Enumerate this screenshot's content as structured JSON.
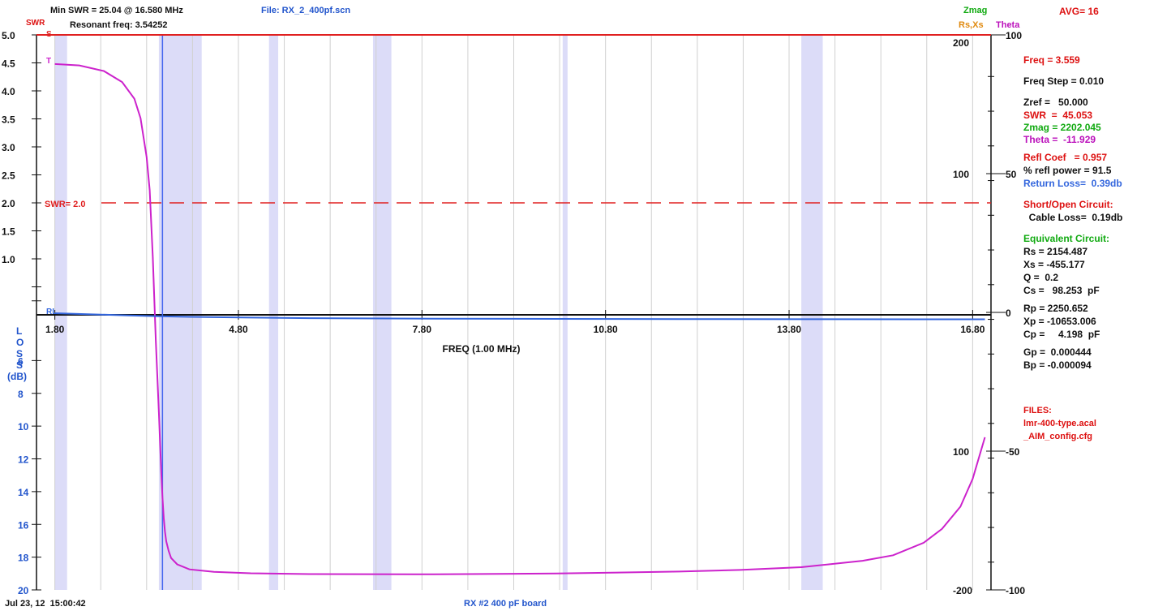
{
  "header": {
    "min_swr_text": "Min SWR = 25.04 @ 16.580 MHz",
    "resonant_text": "Resonant freq: 3.54252",
    "file_text": "File: RX_2_400pf.scn",
    "zmag_label": "Zmag",
    "rsxs_label": "Rs,Xs",
    "theta_label": "Theta",
    "avg_text": "AVG= 16",
    "swr_axis_label": "SWR"
  },
  "footer": {
    "timestamp": "Jul 23, 12  15:00:42",
    "caption": "RX #2 400 pF board"
  },
  "panel": {
    "freq": "Freq = 3.559",
    "freq_step": "Freq Step = 0.010",
    "zref": "Zref =   50.000",
    "swr": "SWR  =  45.053",
    "zmag": "Zmag = 2202.045",
    "theta": "Theta =  -11.929",
    "refl_coef": "Refl Coef   = 0.957",
    "refl_power": "% refl power = 91.5",
    "return_loss": "Return Loss=  0.39db",
    "short_open": "Short/Open Circuit:",
    "cable_loss": "  Cable Loss=  0.19db",
    "equiv_circuit": "Equivalent Circuit:",
    "rs": "Rs = 2154.487",
    "xs": "Xs = -455.177",
    "q": "Q =  0.2",
    "cs": "Cs =   98.253  pF",
    "rp": "Rp = 2250.652",
    "xp": "Xp = -10653.006",
    "cp": "Cp =     4.198  pF",
    "gp": "Gp =  0.000444",
    "bp": "Bp = -0.000094",
    "files_label": "FILES:",
    "file1": "lmr-400-type.acal",
    "file2": "_AIM_config.cfg"
  },
  "colors": {
    "swr": "#e02020",
    "zmag": "#22aa22",
    "rsxs": "#e08a10",
    "theta": "#cc22cc",
    "return_loss": "#3366dd",
    "band": "#dcdcf8",
    "cursor": "#4466ee",
    "grid": "#d0d0d0",
    "text_blue": "#2255cc",
    "text_red": "#dd1111",
    "text_green": "#11aa11",
    "text_magenta": "#bb11bb"
  },
  "chart_data": {
    "type": "line",
    "xlabel": "FREQ (1.00 MHz)",
    "xlim": [
      1.5,
      17.1
    ],
    "x_ticks": [
      "1.80",
      "4.80",
      "7.80",
      "10.80",
      "13.80",
      "16.80"
    ],
    "swr_axis": {
      "ylim": [
        0,
        5.0
      ],
      "ticks": [
        "5.0",
        "4.5",
        "4.0",
        "3.5",
        "3.0",
        "2.5",
        "2.0",
        "1.5",
        "1.0"
      ]
    },
    "loss_axis": {
      "label_letters": [
        "L",
        "O",
        "S",
        "S",
        "(dB)"
      ],
      "ylim": [
        4,
        20
      ],
      "ticks": [
        "6",
        "8",
        "10",
        "12",
        "14",
        "16",
        "18",
        "20"
      ]
    },
    "zmag_axis": {
      "ticks": [
        "200",
        "100",
        "100",
        "-200"
      ]
    },
    "theta_axis": {
      "ylim": [
        -100,
        100
      ],
      "ticks": [
        "100",
        "50",
        "0",
        "-50",
        "-100"
      ]
    },
    "swr_threshold": {
      "value": 2.0,
      "label": "SWR= 2.0"
    },
    "cursor_freq": 3.559,
    "series_markers": {
      "swr": "S",
      "theta": "T",
      "rl": "RL"
    },
    "ham_bands": [
      [
        1.8,
        2.0
      ],
      [
        3.5,
        4.2
      ],
      [
        5.3,
        5.45
      ],
      [
        7.0,
        7.3
      ],
      [
        10.1,
        10.15
      ],
      [
        14.0,
        14.35
      ]
    ],
    "series": [
      {
        "name": "SWR",
        "x": [
          1.5,
          17.1
        ],
        "y": [
          5.0,
          5.0
        ]
      },
      {
        "name": "Theta",
        "x": [
          1.8,
          2.2,
          2.6,
          2.9,
          3.1,
          3.2,
          3.3,
          3.35,
          3.4,
          3.45,
          3.5,
          3.54,
          3.56,
          3.58,
          3.6,
          3.62,
          3.66,
          3.7,
          3.8,
          4.0,
          4.4,
          5.0,
          6.0,
          8.0,
          10.0,
          12.0,
          13.0,
          14.0,
          15.0,
          15.5,
          16.0,
          16.3,
          16.6,
          16.8,
          17.0
        ],
        "y": [
          89.5,
          89.0,
          87.0,
          83.0,
          77.0,
          70.0,
          56.0,
          44.0,
          20.0,
          -10.0,
          -36.0,
          -58.0,
          -67.0,
          -74.0,
          -79.0,
          -82.5,
          -86.0,
          -88.5,
          -90.8,
          -92.6,
          -93.5,
          -94.0,
          -94.3,
          -94.4,
          -94.1,
          -93.4,
          -92.8,
          -91.8,
          -89.5,
          -87.5,
          -83.0,
          -78.0,
          -70.0,
          -60.0,
          -45.0
        ]
      },
      {
        "name": "Return Loss",
        "x": [
          1.8,
          2.5,
          3.0,
          3.5,
          4.0,
          5.0,
          6.0,
          8.0,
          10.0,
          12.0,
          14.0,
          16.0,
          17.0
        ],
        "y": [
          4.0,
          4.1,
          4.17,
          4.24,
          4.28,
          4.34,
          4.38,
          4.42,
          4.44,
          4.45,
          4.46,
          4.47,
          4.47
        ]
      }
    ]
  }
}
